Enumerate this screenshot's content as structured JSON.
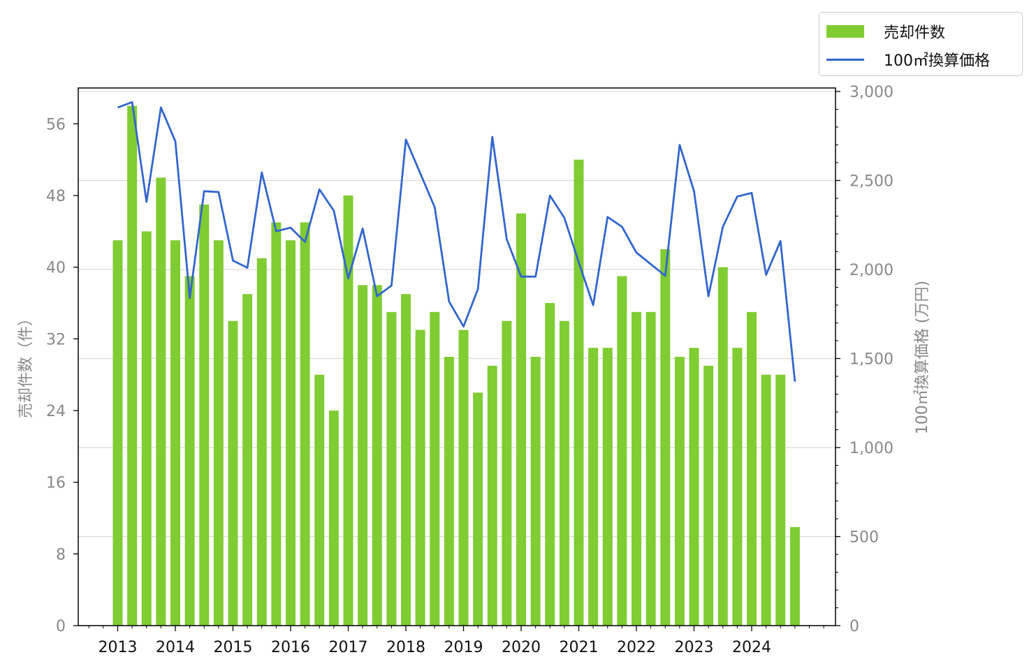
{
  "colors": {
    "bar": "#80cc33",
    "line": "#3366cc",
    "grid": "#d9d9d9",
    "tick_text": "#888888",
    "x_tick_text": "#111111"
  },
  "legend": {
    "bar_label": "売却件数",
    "line_label": "100㎡換算価格",
    "position": "top-right, outside plot"
  },
  "axes": {
    "y_left_label": "売却件数（件）",
    "y_right_label": "100㎡換算価格 (万円)"
  },
  "chart_data": {
    "type": "bar+line",
    "x_tick_labels": [
      "2013",
      "2014",
      "2015",
      "2016",
      "2017",
      "2018",
      "2019",
      "2020",
      "2021",
      "2022",
      "2023",
      "2024"
    ],
    "periods": [
      "2013Q1",
      "2013Q2",
      "2013Q3",
      "2013Q4",
      "2014Q1",
      "2014Q2",
      "2014Q3",
      "2014Q4",
      "2015Q1",
      "2015Q2",
      "2015Q3",
      "2015Q4",
      "2016Q1",
      "2016Q2",
      "2016Q3",
      "2016Q4",
      "2017Q1",
      "2017Q2",
      "2017Q3",
      "2017Q4",
      "2018Q1",
      "2018Q2",
      "2018Q3",
      "2018Q4",
      "2019Q1",
      "2019Q2",
      "2019Q3",
      "2019Q4",
      "2020Q1",
      "2020Q2",
      "2020Q3",
      "2020Q4",
      "2021Q1",
      "2021Q2",
      "2021Q3",
      "2021Q4",
      "2022Q1",
      "2022Q2",
      "2022Q3",
      "2022Q4",
      "2023Q1",
      "2023Q2",
      "2023Q3",
      "2023Q4",
      "2024Q1",
      "2024Q2",
      "2024Q3",
      "2024Q4"
    ],
    "series": [
      {
        "name": "売却件数",
        "type": "bar",
        "axis": "left",
        "values": [
          43,
          58,
          44,
          50,
          43,
          39,
          47,
          43,
          34,
          37,
          41,
          45,
          43,
          45,
          28,
          24,
          48,
          38,
          38,
          35,
          37,
          33,
          35,
          30,
          33,
          26,
          29,
          34,
          46,
          30,
          36,
          34,
          52,
          31,
          31,
          39,
          35,
          35,
          42,
          30,
          31,
          29,
          40,
          31,
          35,
          28,
          28,
          11
        ]
      },
      {
        "name": "100㎡換算価格",
        "type": "line",
        "axis": "right",
        "values": [
          2910,
          2940,
          2380,
          2910,
          2720,
          1840,
          2440,
          2435,
          2050,
          2010,
          2545,
          2215,
          2235,
          2155,
          2450,
          2330,
          1950,
          2230,
          1850,
          1910,
          2730,
          2540,
          2350,
          1820,
          1680,
          1890,
          2745,
          2170,
          1960,
          1960,
          2415,
          2290,
          2040,
          1800,
          2295,
          2240,
          2095,
          2030,
          1965,
          2700,
          2440,
          1850,
          2240,
          2410,
          2430,
          1970,
          2160,
          1370
        ]
      }
    ],
    "y_left": {
      "ylim": [
        0,
        60
      ],
      "ticks": [
        0,
        8,
        16,
        24,
        32,
        40,
        48,
        56
      ]
    },
    "y_right": {
      "ylim": [
        0,
        3000
      ],
      "ticks": [
        "0",
        "500",
        "1,000",
        "1,500",
        "2,000",
        "2,500",
        "3,000"
      ],
      "tick_values": [
        0,
        500,
        1000,
        1500,
        2000,
        2500,
        3000
      ]
    },
    "grid": "horizontal, right-axis ticks"
  }
}
